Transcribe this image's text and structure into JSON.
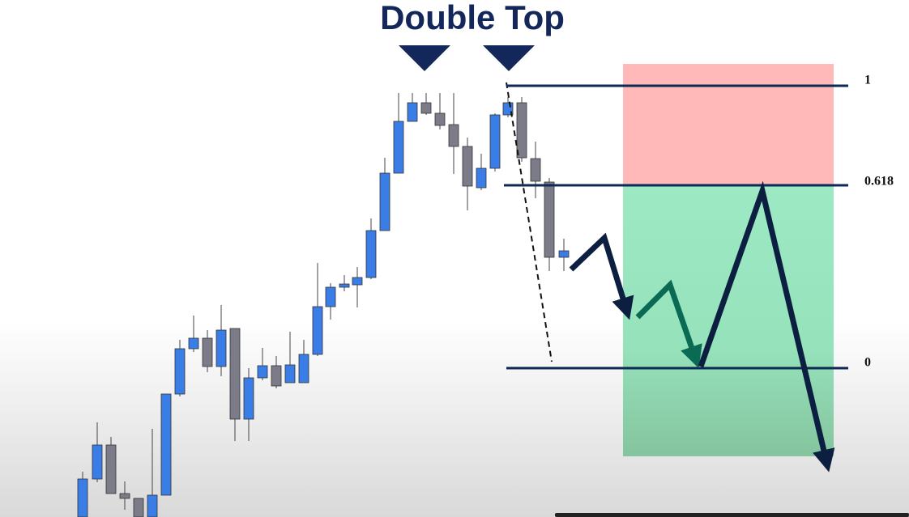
{
  "header": {
    "title": "Double Top"
  },
  "levels": [
    {
      "label": "1"
    },
    {
      "label": "0.618"
    },
    {
      "label": "0"
    }
  ]
}
